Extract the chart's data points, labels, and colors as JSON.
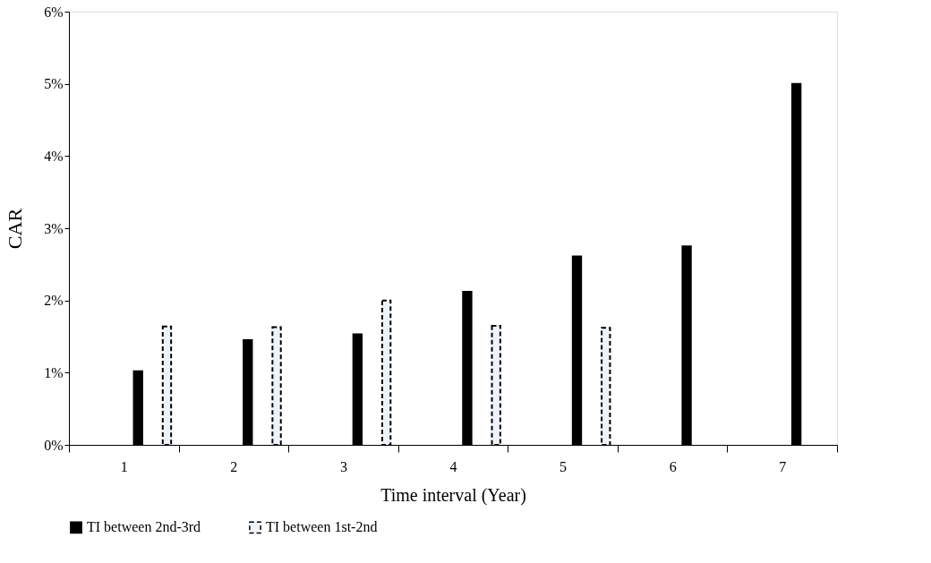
{
  "chart_data": {
    "type": "bar",
    "xlabel": "Time interval (Year)",
    "ylabel": "CAR",
    "categories": [
      "1",
      "2",
      "3",
      "4",
      "5",
      "6",
      "7"
    ],
    "series": [
      {
        "name": "TI between 2nd-3rd",
        "color": "#000000",
        "values": [
          1.02,
          1.45,
          1.53,
          2.12,
          2.61,
          2.75,
          5.0
        ]
      },
      {
        "name": "TI between 1st-2nd",
        "color": "#eef3fb",
        "line_style": "dashed",
        "values": [
          1.64,
          1.63,
          2.0,
          1.65,
          1.62,
          null,
          null
        ]
      }
    ],
    "ylim": [
      0,
      6
    ],
    "yticks": [
      {
        "value": 0,
        "label": "0%"
      },
      {
        "value": 1,
        "label": "1%"
      },
      {
        "value": 2,
        "label": "2%"
      },
      {
        "value": 3,
        "label": "3%"
      },
      {
        "value": 4,
        "label": "4%"
      },
      {
        "value": 5,
        "label": "5%"
      },
      {
        "value": 6,
        "label": "6%"
      }
    ],
    "grid": false,
    "legend": "bottom"
  }
}
